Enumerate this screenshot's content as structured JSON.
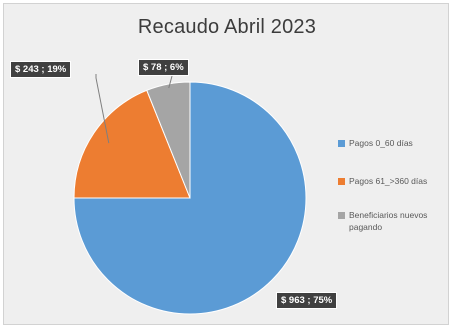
{
  "chart_data": {
    "type": "pie",
    "title": "Recaudo Abril 2023",
    "slices": [
      {
        "name": "Pagos 0_60 días",
        "value": 963,
        "percent": 75,
        "label": "$ 963 ; 75%",
        "color": "#5b9bd5"
      },
      {
        "name": "Pagos 61_>360 días",
        "value": 243,
        "percent": 19,
        "label": "$ 243 ; 19%",
        "color": "#ed7d31"
      },
      {
        "name": "Beneficiarios nuevos pagando",
        "value": 78,
        "percent": 6,
        "label": "$ 78 ; 6%",
        "color": "#a5a5a5"
      }
    ],
    "legend_position": "right"
  }
}
